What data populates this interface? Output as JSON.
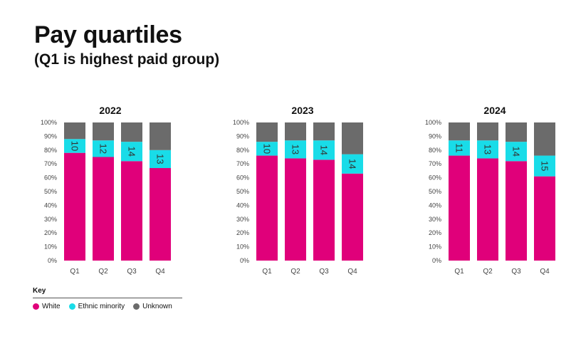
{
  "header": {
    "title": "Pay quartiles",
    "subtitle": "(Q1 is highest paid group)"
  },
  "key": {
    "title": "Key",
    "items": [
      {
        "label": "White",
        "color": "#e0007a"
      },
      {
        "label": "Ethnic minority",
        "color": "#19dce8"
      },
      {
        "label": "Unknown",
        "color": "#6b6b6b"
      }
    ]
  },
  "chart_data": [
    {
      "type": "bar",
      "stacked": true,
      "title": "2022",
      "categories": [
        "Q1",
        "Q2",
        "Q3",
        "Q4"
      ],
      "ylim": [
        0,
        100
      ],
      "yticks": [
        "0%",
        "10%",
        "20%",
        "30%",
        "40%",
        "50%",
        "60%",
        "70%",
        "80%",
        "90%",
        "100%"
      ],
      "series": [
        {
          "name": "White",
          "color": "#e0007a",
          "values": [
            78,
            75,
            72,
            67
          ]
        },
        {
          "name": "Ethnic minority",
          "color": "#19dce8",
          "values": [
            10,
            12,
            14,
            13
          ]
        },
        {
          "name": "Unknown",
          "color": "#6b6b6b",
          "values": [
            12,
            13,
            14,
            20
          ]
        }
      ],
      "data_labels": [
        "10",
        "12",
        "14",
        "13"
      ]
    },
    {
      "type": "bar",
      "stacked": true,
      "title": "2023",
      "categories": [
        "Q1",
        "Q2",
        "Q3",
        "Q4"
      ],
      "ylim": [
        0,
        100
      ],
      "yticks": [
        "0%",
        "10%",
        "20%",
        "30%",
        "40%",
        "50%",
        "60%",
        "70%",
        "80%",
        "90%",
        "100%"
      ],
      "series": [
        {
          "name": "White",
          "color": "#e0007a",
          "values": [
            76,
            74,
            73,
            63
          ]
        },
        {
          "name": "Ethnic minority",
          "color": "#19dce8",
          "values": [
            10,
            13,
            14,
            14
          ]
        },
        {
          "name": "Unknown",
          "color": "#6b6b6b",
          "values": [
            14,
            13,
            13,
            23
          ]
        }
      ],
      "data_labels": [
        "10",
        "13",
        "14",
        "14"
      ]
    },
    {
      "type": "bar",
      "stacked": true,
      "title": "2024",
      "categories": [
        "Q1",
        "Q2",
        "Q3",
        "Q4"
      ],
      "ylim": [
        0,
        100
      ],
      "yticks": [
        "0%",
        "10%",
        "20%",
        "30%",
        "40%",
        "50%",
        "60%",
        "70%",
        "80%",
        "90%",
        "100%"
      ],
      "series": [
        {
          "name": "White",
          "color": "#e0007a",
          "values": [
            76,
            74,
            72,
            61
          ]
        },
        {
          "name": "Ethnic minority",
          "color": "#19dce8",
          "values": [
            11,
            13,
            14,
            15
          ]
        },
        {
          "name": "Unknown",
          "color": "#6b6b6b",
          "values": [
            13,
            13,
            14,
            24
          ]
        }
      ],
      "data_labels": [
        "11",
        "13",
        "14",
        "15"
      ]
    }
  ]
}
